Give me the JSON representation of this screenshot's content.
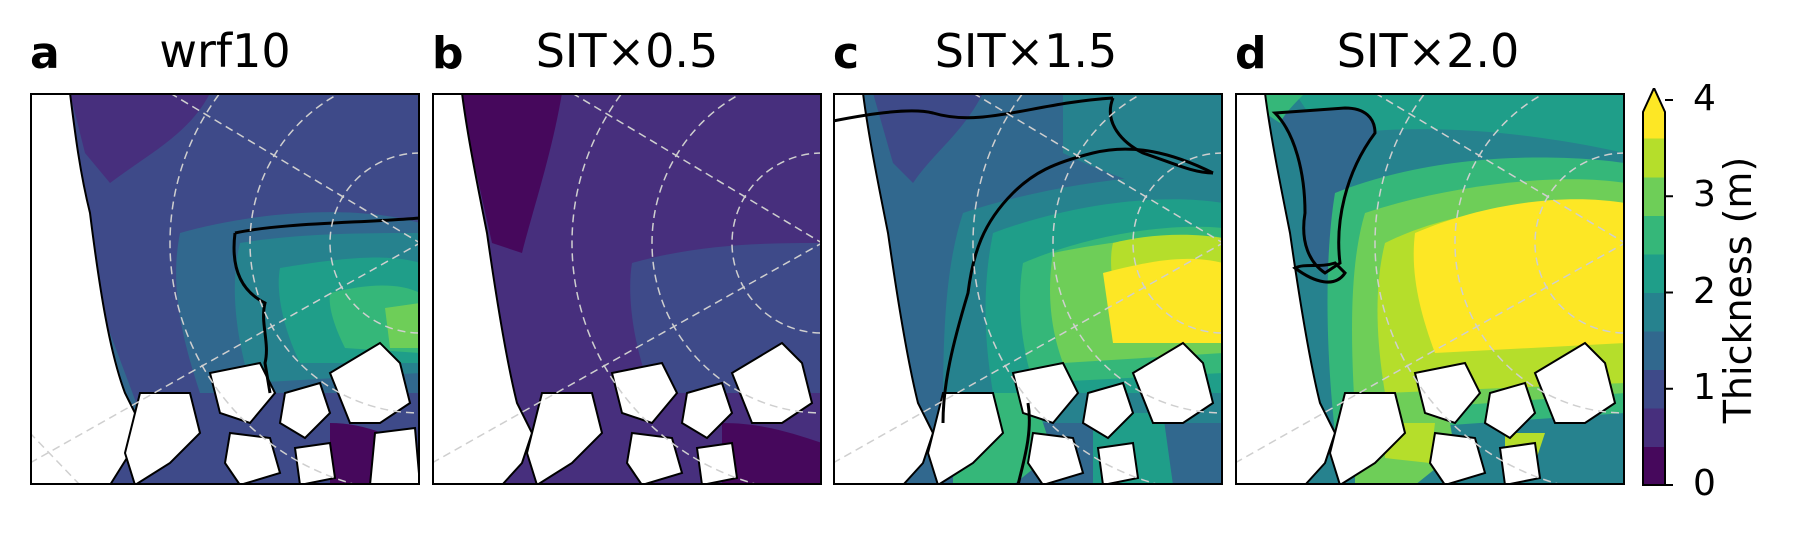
{
  "panels": [
    {
      "letter": "a",
      "title": "wrf10"
    },
    {
      "letter": "b",
      "title": "SIT×0.5"
    },
    {
      "letter": "c",
      "title": "SIT×1.5"
    },
    {
      "letter": "d",
      "title": "SIT×2.0"
    }
  ],
  "colorbar": {
    "label": "Thickness (m)",
    "ticks": [
      "0",
      "1",
      "2",
      "3",
      "4"
    ],
    "min": 0,
    "max": 4,
    "step": 0.5,
    "extend": "max",
    "colors": [
      "#46085c",
      "#472f7d",
      "#3e4a89",
      "#31688e",
      "#26828e",
      "#1f9e89",
      "#35b779",
      "#6ece58",
      "#b5de2b",
      "#fde725"
    ]
  },
  "colors": {
    "land": "#ffffff",
    "coast": "#000000",
    "grid": "#cfcfcf",
    "contour": "#000000"
  }
}
